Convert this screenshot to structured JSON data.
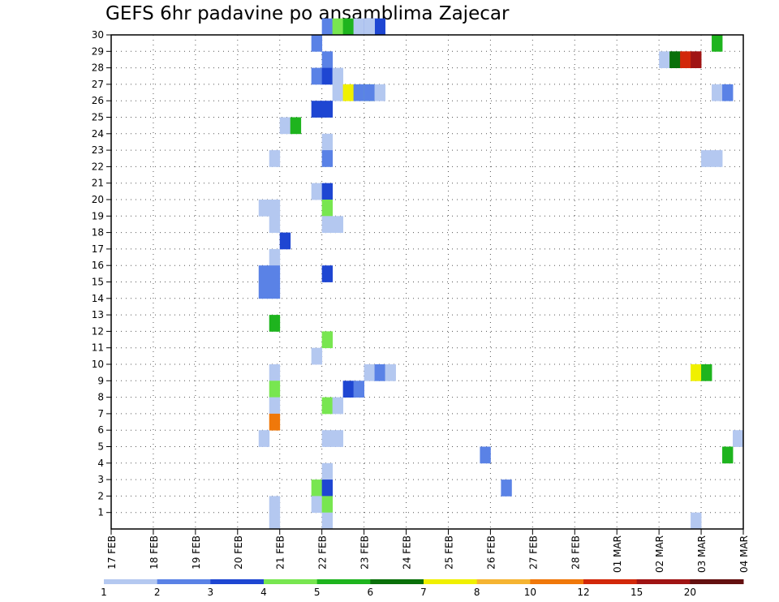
{
  "chart_data": {
    "type": "heatmap",
    "title": "GEFS 6hr padavine po ansamblima Zajecar",
    "xlabel": "",
    "ylabel": "",
    "x_tick_labels": [
      "17 FEB",
      "18 FEB",
      "19 FEB",
      "20 FEB",
      "21 FEB",
      "22 FEB",
      "23 FEB",
      "24 FEB",
      "25 FEB",
      "26 FEB",
      "27 FEB",
      "28 FEB",
      "01 MAR",
      "02 MAR",
      "03 MAR",
      "04 MAR"
    ],
    "y_tick_labels": [
      "1",
      "2",
      "3",
      "4",
      "5",
      "6",
      "7",
      "8",
      "9",
      "10",
      "11",
      "12",
      "13",
      "14",
      "15",
      "16",
      "17",
      "18",
      "19",
      "20",
      "21",
      "22",
      "23",
      "24",
      "25",
      "26",
      "27",
      "28",
      "29",
      "30"
    ],
    "xlim_days": [
      0,
      15
    ],
    "ylim": [
      0,
      30
    ],
    "time_step": "6hr",
    "grid": true,
    "colorbar": {
      "placement": "bottom",
      "colors": [
        "#b4c8f0",
        "#5a82e6",
        "#1e46d2",
        "#78e650",
        "#1eb41e",
        "#0a700a",
        "#f0f000",
        "#f5b432",
        "#f0780a",
        "#d2280a",
        "#a01414",
        "#641010"
      ],
      "tick_labels": [
        "1",
        "2",
        "3",
        "4",
        "5",
        "6",
        "7",
        "8",
        "10",
        "12",
        "15",
        "20"
      ]
    },
    "cells": [
      {
        "member": 30,
        "day": 5,
        "step": 0,
        "bin": 1
      },
      {
        "member": 30,
        "day": 5,
        "step": 1,
        "bin": 3
      },
      {
        "member": 30,
        "day": 5,
        "step": 2,
        "bin": 4
      },
      {
        "member": 30,
        "day": 5,
        "step": 3,
        "bin": 0
      },
      {
        "member": 30,
        "day": 5,
        "step": 4,
        "bin": 2
      },
      {
        "member": 30,
        "day": 5,
        "step": 5,
        "bin": 2
      },
      {
        "member": 30,
        "day": 6,
        "step": 0,
        "bin": 0
      },
      {
        "member": 29,
        "day": 4,
        "step": 3,
        "bin": 1
      },
      {
        "member": 29,
        "day": 14,
        "step": 1,
        "bin": 4
      },
      {
        "member": 28,
        "day": 5,
        "step": 0,
        "bin": 1
      },
      {
        "member": 28,
        "day": 13,
        "step": 0,
        "bin": 0
      },
      {
        "member": 28,
        "day": 13,
        "step": 1,
        "bin": 5
      },
      {
        "member": 28,
        "day": 13,
        "step": 2,
        "bin": 9
      },
      {
        "member": 28,
        "day": 13,
        "step": 3,
        "bin": 10
      },
      {
        "member": 27,
        "day": 4,
        "step": 3,
        "bin": 1
      },
      {
        "member": 27,
        "day": 5,
        "step": 0,
        "bin": 2
      },
      {
        "member": 27,
        "day": 5,
        "step": 1,
        "bin": 0
      },
      {
        "member": 26,
        "day": 5,
        "step": 1,
        "bin": 0
      },
      {
        "member": 26,
        "day": 5,
        "step": 2,
        "bin": 6
      },
      {
        "member": 26,
        "day": 5,
        "step": 3,
        "bin": 1
      },
      {
        "member": 26,
        "day": 5,
        "step": 4,
        "bin": 3
      },
      {
        "member": 26,
        "day": 6,
        "step": 0,
        "bin": 1
      },
      {
        "member": 26,
        "day": 6,
        "step": 1,
        "bin": 0
      },
      {
        "member": 26,
        "day": 14,
        "step": 1,
        "bin": 0
      },
      {
        "member": 26,
        "day": 14,
        "step": 2,
        "bin": 1
      },
      {
        "member": 25,
        "day": 4,
        "step": 3,
        "bin": 2
      },
      {
        "member": 25,
        "day": 5,
        "step": 0,
        "bin": 2
      },
      {
        "member": 24,
        "day": 4,
        "step": 0,
        "bin": 0
      },
      {
        "member": 24,
        "day": 4,
        "step": 1,
        "bin": 4
      },
      {
        "member": 23,
        "day": 5,
        "step": 0,
        "bin": 0
      },
      {
        "member": 22,
        "day": 3,
        "step": 3,
        "bin": 0
      },
      {
        "member": 22,
        "day": 5,
        "step": 0,
        "bin": 1
      },
      {
        "member": 22,
        "day": 14,
        "step": 0,
        "bin": 0
      },
      {
        "member": 22,
        "day": 14,
        "step": 1,
        "bin": 0
      },
      {
        "member": 20,
        "day": 4,
        "step": 3,
        "bin": 0
      },
      {
        "member": 20,
        "day": 5,
        "step": 0,
        "bin": 2
      },
      {
        "member": 19,
        "day": 3,
        "step": 2,
        "bin": 0
      },
      {
        "member": 19,
        "day": 3,
        "step": 3,
        "bin": 0
      },
      {
        "member": 19,
        "day": 5,
        "step": 0,
        "bin": 3
      },
      {
        "member": 18,
        "day": 3,
        "step": 3,
        "bin": 0
      },
      {
        "member": 18,
        "day": 5,
        "step": 0,
        "bin": 0
      },
      {
        "member": 18,
        "day": 5,
        "step": 1,
        "bin": 0
      },
      {
        "member": 17,
        "day": 4,
        "step": 0,
        "bin": 2
      },
      {
        "member": 16,
        "day": 3,
        "step": 3,
        "bin": 0
      },
      {
        "member": 15,
        "day": 3,
        "step": 2,
        "bin": 1
      },
      {
        "member": 15,
        "day": 3,
        "step": 3,
        "bin": 1
      },
      {
        "member": 15,
        "day": 5,
        "step": 0,
        "bin": 2
      },
      {
        "member": 14,
        "day": 3,
        "step": 2,
        "bin": 1
      },
      {
        "member": 14,
        "day": 3,
        "step": 3,
        "bin": 1
      },
      {
        "member": 12,
        "day": 3,
        "step": 3,
        "bin": 4
      },
      {
        "member": 11,
        "day": 5,
        "step": 0,
        "bin": 3
      },
      {
        "member": 10,
        "day": 4,
        "step": 3,
        "bin": 0
      },
      {
        "member": 9,
        "day": 3,
        "step": 3,
        "bin": 0
      },
      {
        "member": 9,
        "day": 6,
        "step": 0,
        "bin": 0
      },
      {
        "member": 9,
        "day": 6,
        "step": 1,
        "bin": 1
      },
      {
        "member": 9,
        "day": 6,
        "step": 2,
        "bin": 0
      },
      {
        "member": 9,
        "day": 13,
        "step": 3,
        "bin": 6
      },
      {
        "member": 9,
        "day": 14,
        "step": 0,
        "bin": 4
      },
      {
        "member": 8,
        "day": 3,
        "step": 3,
        "bin": 3
      },
      {
        "member": 8,
        "day": 5,
        "step": 2,
        "bin": 2
      },
      {
        "member": 8,
        "day": 5,
        "step": 3,
        "bin": 1
      },
      {
        "member": 7,
        "day": 3,
        "step": 3,
        "bin": 0
      },
      {
        "member": 7,
        "day": 5,
        "step": 0,
        "bin": 3
      },
      {
        "member": 7,
        "day": 5,
        "step": 1,
        "bin": 0
      },
      {
        "member": 6,
        "day": 3,
        "step": 3,
        "bin": 8
      },
      {
        "member": 5,
        "day": 3,
        "step": 2,
        "bin": 0
      },
      {
        "member": 5,
        "day": 5,
        "step": 0,
        "bin": 0
      },
      {
        "member": 5,
        "day": 5,
        "step": 1,
        "bin": 0
      },
      {
        "member": 5,
        "day": 14,
        "step": 3,
        "bin": 0
      },
      {
        "member": 4,
        "day": 8,
        "step": 3,
        "bin": 1
      },
      {
        "member": 4,
        "day": 14,
        "step": 2,
        "bin": 4
      },
      {
        "member": 3,
        "day": 5,
        "step": 0,
        "bin": 0
      },
      {
        "member": 2,
        "day": 4,
        "step": 3,
        "bin": 3
      },
      {
        "member": 2,
        "day": 5,
        "step": 0,
        "bin": 2
      },
      {
        "member": 2,
        "day": 9,
        "step": 1,
        "bin": 1
      },
      {
        "member": 1,
        "day": 3,
        "step": 3,
        "bin": 0
      },
      {
        "member": 1,
        "day": 4,
        "step": 3,
        "bin": 0
      },
      {
        "member": 1,
        "day": 5,
        "step": 0,
        "bin": 3
      },
      {
        "member": 0,
        "day": 3,
        "step": 3,
        "bin": 0
      },
      {
        "member": 0,
        "day": 5,
        "step": 0,
        "bin": 0
      },
      {
        "member": 0,
        "day": 13,
        "step": 3,
        "bin": 0
      }
    ]
  }
}
